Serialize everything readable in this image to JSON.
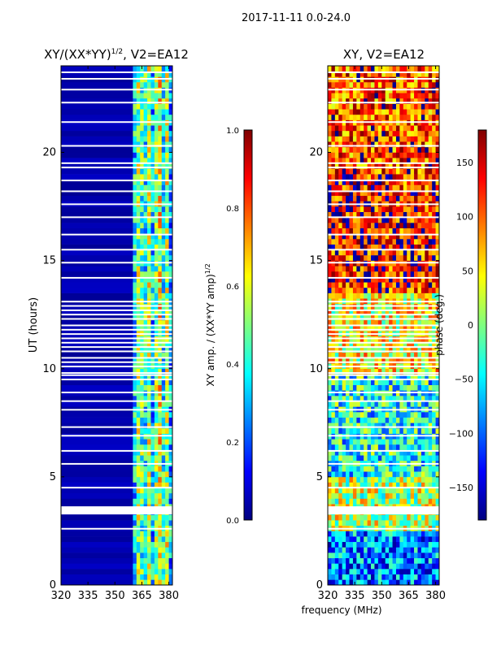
{
  "suptitle": "2017-11-11 0.0-24.0",
  "shared_xlabel": "frequency (MHz)",
  "colors": {
    "jet": [
      "#00007f",
      "#0000ff",
      "#007fff",
      "#00ffff",
      "#7fff7f",
      "#ffff00",
      "#ff7f00",
      "#ff0000",
      "#7f0000"
    ],
    "gap": "#ffffff",
    "frame": "#000000"
  },
  "chart_data": [
    {
      "type": "heatmap",
      "title_base": "XY/(XX*YY)",
      "title_sup": "1/2",
      "title_suffix": ", V2=EA12",
      "xlabel": "",
      "ylabel": "UT (hours)",
      "xlim": [
        320,
        382
      ],
      "ylim": [
        0,
        24
      ],
      "xticks": [
        320,
        335,
        350,
        365,
        380
      ],
      "yticks": [
        0,
        5,
        10,
        15,
        20
      ],
      "colorbar": {
        "label_base": "XY amp. / (XX*YY amp)",
        "label_sup": "1/2",
        "range": [
          0.0,
          1.0
        ],
        "ticks": [
          "0.0",
          "0.2",
          "0.4",
          "0.6",
          "0.8",
          "1.0"
        ]
      },
      "columns": [
        {
          "from": 320,
          "to": 360,
          "level": 0.02
        },
        {
          "from": 360,
          "to": 362,
          "level": 0.35
        },
        {
          "from": 362,
          "to": 364,
          "level": 0.52
        },
        {
          "from": 364,
          "to": 366,
          "level": 0.45
        },
        {
          "from": 366,
          "to": 368,
          "level": 0.4
        },
        {
          "from": 368,
          "to": 370,
          "level": 0.55
        },
        {
          "from": 370,
          "to": 372,
          "level": 0.33
        },
        {
          "from": 372,
          "to": 374,
          "level": 0.5
        },
        {
          "from": 374,
          "to": 376,
          "level": 0.62
        },
        {
          "from": 376,
          "to": 378,
          "level": 0.4
        },
        {
          "from": 378,
          "to": 380,
          "level": 0.55
        },
        {
          "from": 380,
          "to": 382,
          "level": 0.3
        }
      ]
    },
    {
      "type": "heatmap",
      "title": "XY, V2=EA12",
      "xlabel": "",
      "ylabel": "",
      "xlim": [
        320,
        382
      ],
      "ylim": [
        0,
        24
      ],
      "xticks": [
        320,
        335,
        350,
        365,
        380
      ],
      "yticks": [
        0,
        5,
        10,
        15,
        20
      ],
      "colorbar": {
        "label": "phase (deg.)",
        "range": [
          -180,
          180
        ],
        "ticks": [
          "−150",
          "−100",
          "−50",
          "0",
          "50",
          "100",
          "150"
        ],
        "tick_values": [
          -150,
          -100,
          -50,
          0,
          50,
          100,
          150
        ]
      },
      "bands": [
        {
          "from": 0.0,
          "to": 2.5,
          "phase": -90
        },
        {
          "from": 2.5,
          "to": 4.8,
          "phase": 20
        },
        {
          "from": 4.8,
          "to": 9.6,
          "phase": -40
        },
        {
          "from": 9.6,
          "to": 13.5,
          "phase": 40
        },
        {
          "from": 13.5,
          "to": 18.8,
          "phase": 130
        },
        {
          "from": 18.8,
          "to": 24.0,
          "phase": 110
        }
      ]
    }
  ],
  "missing_ut_rows": [
    2.6,
    3.3,
    3.6,
    4.5,
    5.6,
    6.2,
    6.9,
    7.3,
    8.1,
    8.5,
    8.9,
    9.5,
    9.7,
    9.8,
    10.1,
    10.3,
    10.5,
    10.8,
    11.0,
    11.2,
    11.4,
    11.6,
    11.8,
    12.0,
    12.3,
    12.5,
    12.7,
    12.9,
    13.1,
    14.2,
    14.9,
    15.5,
    16.2,
    17.0,
    17.6,
    18.2,
    18.7,
    19.3,
    19.5,
    20.3,
    21.4,
    22.3,
    22.9,
    23.4,
    23.7
  ]
}
